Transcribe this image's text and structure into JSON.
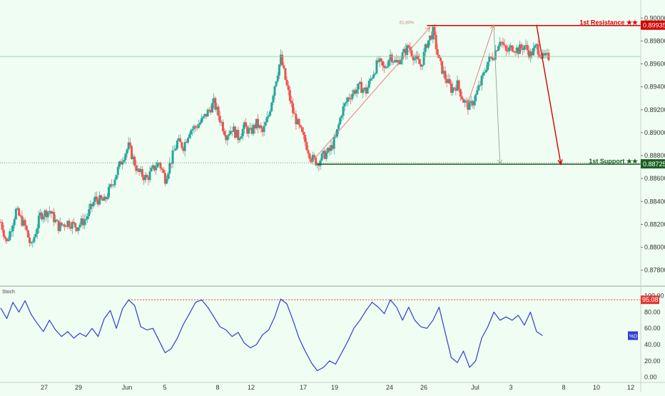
{
  "colors": {
    "background": "#f0fdf2",
    "up_candle": "#26a69a",
    "down_candle": "#ef5350",
    "resistance": "#d40000",
    "support": "#1b5e20",
    "stoch_line": "#2f3fd0",
    "overbought_line": "#e53935",
    "arrow_up": "#e57373",
    "arrow_grey": "#8fa88f"
  },
  "chart_data": [
    {
      "type": "candlestick",
      "title": "",
      "x_ticks": [
        "27",
        "29",
        "Jun",
        "5",
        "8",
        "12",
        "17",
        "19",
        "24",
        "26",
        "Jul",
        "3",
        "8",
        "10",
        "12"
      ],
      "y_ticks": [
        "0.90000",
        "0.89800",
        "0.89600",
        "0.89400",
        "0.89200",
        "0.89000",
        "0.88800",
        "0.88600",
        "0.88400",
        "0.88200",
        "0.88000",
        "0.87800"
      ],
      "ylim": [
        0.8768,
        0.9012
      ],
      "current_price": 0.89665,
      "fib_label": "61.80%",
      "resistance": {
        "label": "1st Resistance ★★",
        "value_label": "0.89935",
        "value": 0.89935
      },
      "support": {
        "label": "1st Support ★★",
        "value_label": "0.88725",
        "value": 0.88725
      },
      "price_path": [
        [
          0,
          0.8822
        ],
        [
          2,
          0.8804
        ],
        [
          5,
          0.8832
        ],
        [
          8,
          0.8818
        ],
        [
          10,
          0.88
        ],
        [
          13,
          0.8828
        ],
        [
          16,
          0.8832
        ],
        [
          19,
          0.8818
        ],
        [
          22,
          0.8822
        ],
        [
          25,
          0.8818
        ],
        [
          28,
          0.8825
        ],
        [
          31,
          0.8842
        ],
        [
          34,
          0.884
        ],
        [
          37,
          0.8858
        ],
        [
          40,
          0.8878
        ],
        [
          42,
          0.8888
        ],
        [
          45,
          0.8866
        ],
        [
          48,
          0.886
        ],
        [
          50,
          0.8868
        ],
        [
          52,
          0.8874
        ],
        [
          54,
          0.886
        ],
        [
          56,
          0.8876
        ],
        [
          58,
          0.8892
        ],
        [
          60,
          0.8888
        ],
        [
          62,
          0.8902
        ],
        [
          64,
          0.8905
        ],
        [
          66,
          0.891
        ],
        [
          68,
          0.8918
        ],
        [
          70,
          0.8926
        ],
        [
          72,
          0.8912
        ],
        [
          74,
          0.8898
        ],
        [
          76,
          0.8904
        ],
        [
          78,
          0.8896
        ],
        [
          80,
          0.8905
        ],
        [
          82,
          0.89
        ],
        [
          84,
          0.8908
        ],
        [
          86,
          0.89
        ],
        [
          88,
          0.8915
        ],
        [
          90,
          0.8942
        ],
        [
          92,
          0.8965
        ],
        [
          94,
          0.894
        ],
        [
          96,
          0.8918
        ],
        [
          98,
          0.8904
        ],
        [
          100,
          0.8892
        ],
        [
          102,
          0.8878
        ],
        [
          104,
          0.8874
        ],
        [
          106,
          0.888
        ],
        [
          108,
          0.8884
        ],
        [
          110,
          0.8895
        ],
        [
          112,
          0.8918
        ],
        [
          114,
          0.893
        ],
        [
          116,
          0.8936
        ],
        [
          118,
          0.894
        ],
        [
          120,
          0.8936
        ],
        [
          122,
          0.895
        ],
        [
          124,
          0.8962
        ],
        [
          126,
          0.8955
        ],
        [
          128,
          0.8968
        ],
        [
          130,
          0.896
        ],
        [
          132,
          0.8968
        ],
        [
          134,
          0.8975
        ],
        [
          136,
          0.8965
        ],
        [
          138,
          0.8958
        ],
        [
          140,
          0.8978
        ],
        [
          142,
          0.8988
        ],
        [
          144,
          0.8962
        ],
        [
          146,
          0.8948
        ],
        [
          148,
          0.8938
        ],
        [
          150,
          0.8942
        ],
        [
          152,
          0.8928
        ],
        [
          154,
          0.8922
        ],
        [
          156,
          0.8932
        ],
        [
          158,
          0.8946
        ],
        [
          160,
          0.8962
        ],
        [
          162,
          0.8968
        ],
        [
          164,
          0.8982
        ],
        [
          166,
          0.897
        ],
        [
          168,
          0.8975
        ],
        [
          170,
          0.8972
        ],
        [
          172,
          0.8976
        ],
        [
          174,
          0.8968
        ],
        [
          176,
          0.8975
        ],
        [
          178,
          0.8965
        ],
        [
          180,
          0.8966
        ]
      ],
      "annotations": {
        "rise_1": {
          "from": [
            102,
            0.8874
          ],
          "to": [
            141,
            0.8992
          ]
        },
        "rise_2": {
          "from": [
            153,
            0.8922
          ],
          "to": [
            162,
            0.8994
          ]
        },
        "target_drop": {
          "from": [
            162,
            0.899
          ],
          "to": [
            164,
            0.88725
          ]
        },
        "forecast_drop": {
          "from": [
            176,
            0.8994
          ],
          "to": [
            184,
            0.88725
          ]
        }
      }
    },
    {
      "type": "line",
      "title": "Stoch",
      "legend_label": "%D",
      "y_ticks": [
        "100.00",
        "80.00",
        "60.00",
        "40.00",
        "20.00",
        "0.00"
      ],
      "ylim": [
        -3,
        104
      ],
      "overbought": {
        "value": 95.08,
        "value_label": "95.08"
      },
      "current_value": 51,
      "values": [
        [
          0,
          85
        ],
        [
          2,
          72
        ],
        [
          4,
          92
        ],
        [
          6,
          80
        ],
        [
          8,
          94
        ],
        [
          10,
          77
        ],
        [
          12,
          66
        ],
        [
          14,
          56
        ],
        [
          16,
          70
        ],
        [
          18,
          58
        ],
        [
          20,
          50
        ],
        [
          22,
          56
        ],
        [
          24,
          48
        ],
        [
          26,
          54
        ],
        [
          28,
          50
        ],
        [
          30,
          60
        ],
        [
          32,
          50
        ],
        [
          34,
          72
        ],
        [
          36,
          82
        ],
        [
          38,
          60
        ],
        [
          40,
          84
        ],
        [
          42,
          95
        ],
        [
          44,
          88
        ],
        [
          46,
          62
        ],
        [
          48,
          58
        ],
        [
          50,
          60
        ],
        [
          52,
          45
        ],
        [
          54,
          30
        ],
        [
          56,
          35
        ],
        [
          58,
          48
        ],
        [
          60,
          65
        ],
        [
          62,
          78
        ],
        [
          64,
          92
        ],
        [
          66,
          95
        ],
        [
          68,
          86
        ],
        [
          70,
          74
        ],
        [
          72,
          62
        ],
        [
          74,
          58
        ],
        [
          76,
          50
        ],
        [
          78,
          55
        ],
        [
          80,
          42
        ],
        [
          82,
          36
        ],
        [
          84,
          40
        ],
        [
          86,
          52
        ],
        [
          88,
          58
        ],
        [
          90,
          74
        ],
        [
          92,
          96
        ],
        [
          94,
          90
        ],
        [
          96,
          70
        ],
        [
          98,
          48
        ],
        [
          100,
          32
        ],
        [
          102,
          18
        ],
        [
          104,
          8
        ],
        [
          106,
          12
        ],
        [
          108,
          20
        ],
        [
          110,
          16
        ],
        [
          112,
          30
        ],
        [
          114,
          44
        ],
        [
          116,
          60
        ],
        [
          118,
          70
        ],
        [
          120,
          82
        ],
        [
          122,
          92
        ],
        [
          124,
          86
        ],
        [
          126,
          78
        ],
        [
          128,
          95
        ],
        [
          130,
          86
        ],
        [
          132,
          70
        ],
        [
          134,
          86
        ],
        [
          136,
          70
        ],
        [
          138,
          62
        ],
        [
          140,
          60
        ],
        [
          142,
          70
        ],
        [
          144,
          86
        ],
        [
          146,
          55
        ],
        [
          148,
          24
        ],
        [
          150,
          18
        ],
        [
          152,
          32
        ],
        [
          154,
          12
        ],
        [
          156,
          20
        ],
        [
          158,
          48
        ],
        [
          160,
          62
        ],
        [
          162,
          80
        ],
        [
          164,
          70
        ],
        [
          166,
          74
        ],
        [
          168,
          70
        ],
        [
          170,
          76
        ],
        [
          172,
          64
        ],
        [
          174,
          80
        ],
        [
          176,
          56
        ],
        [
          178,
          51
        ]
      ]
    }
  ]
}
